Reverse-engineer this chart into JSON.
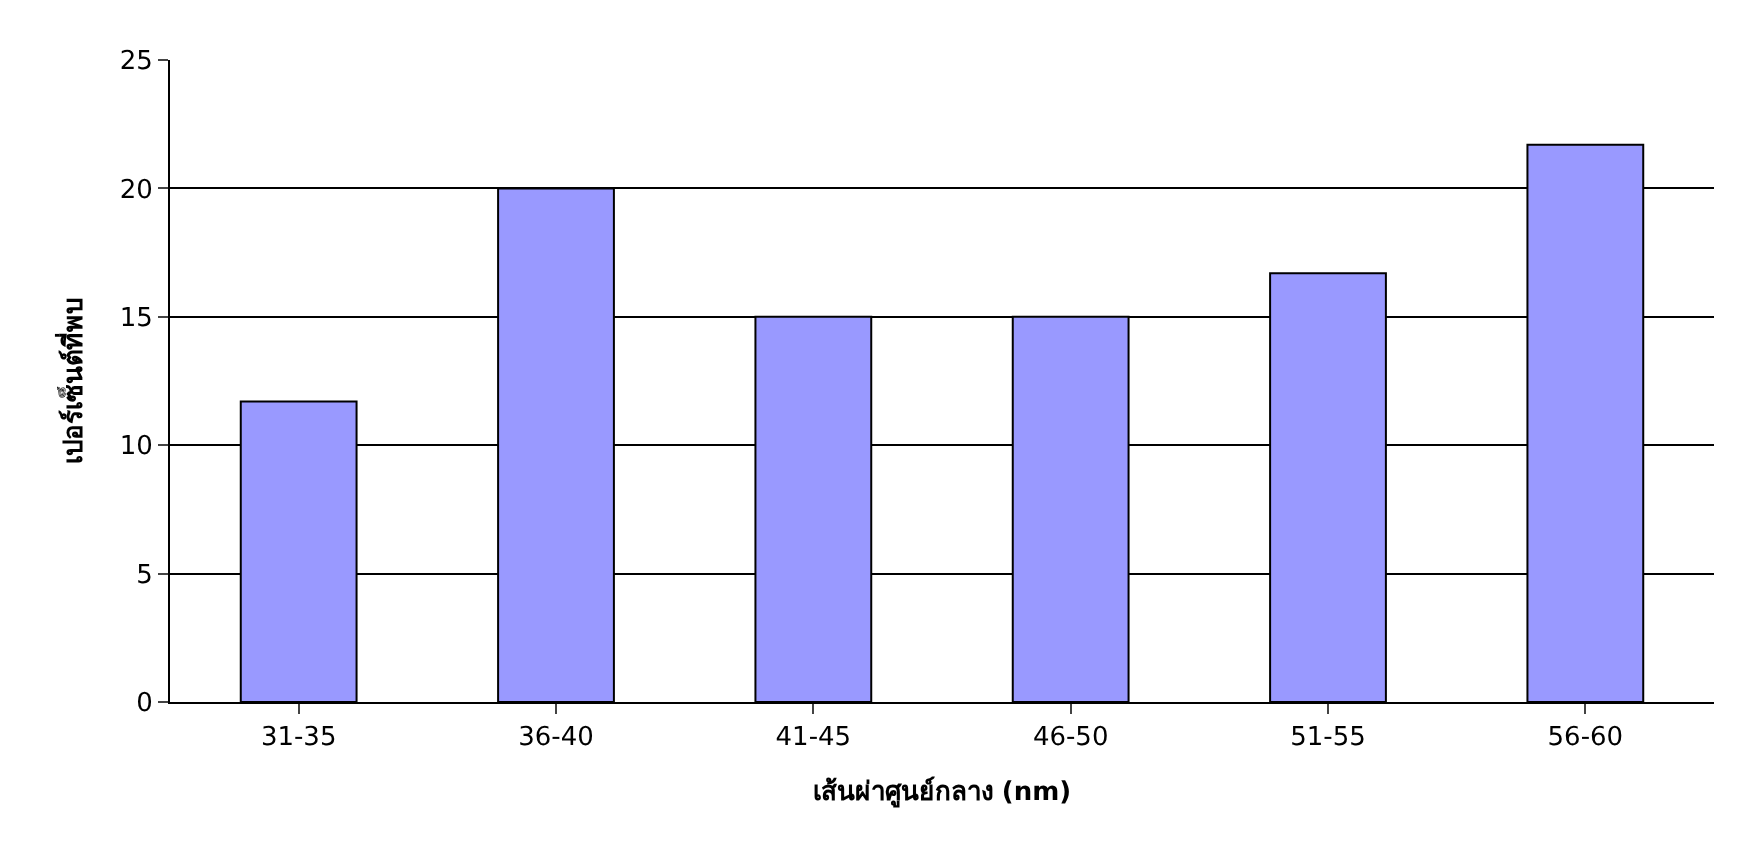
{
  "chart_data": {
    "type": "bar",
    "xlabel": "เส้นผ่าศูนย์กลาง (nm)",
    "ylabel": "เปอร์เซ็นต์ที่พบ",
    "categories": [
      "31-35",
      "36-40",
      "41-45",
      "46-50",
      "51-55",
      "56-60"
    ],
    "values": [
      11.7,
      20,
      15,
      15,
      16.7,
      21.7
    ],
    "color": "#9999ff",
    "ylim": [
      0,
      25
    ],
    "yticks": [
      0,
      5,
      10,
      15,
      20,
      25
    ],
    "grid": "y"
  }
}
